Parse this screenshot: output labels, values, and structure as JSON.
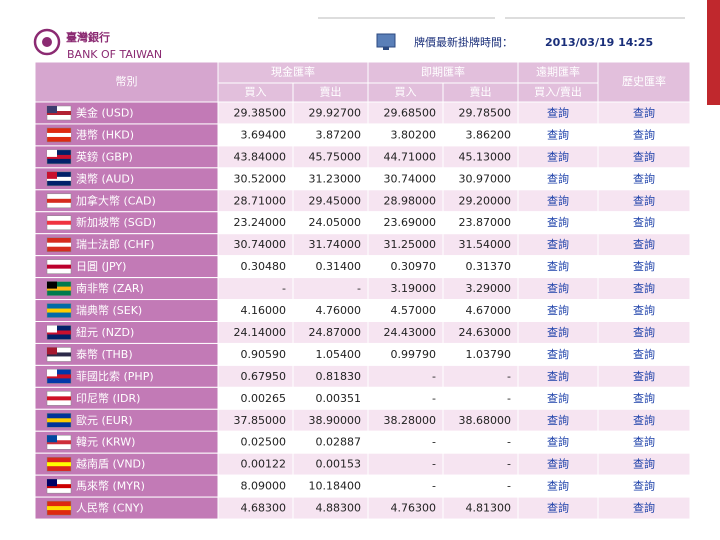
{
  "header": {
    "logo_name": "臺灣銀行",
    "logo_subtitle": "BANK OF TAIWAN",
    "update_label": "牌價最新掛牌時間：",
    "update_time": "2013/03/19 14:25"
  },
  "table": {
    "columns": {
      "currency": "幣別",
      "cash": "現金匯率",
      "spot": "即期匯率",
      "forward": "遠期匯率",
      "history": "歷史匯率",
      "sub": [
        "買入",
        "賣出",
        "買入",
        "賣出",
        "買入/賣出"
      ]
    },
    "rows": [
      [
        "美金 (USD)",
        "29.38500",
        "29.92700",
        "29.68500",
        "29.78500",
        "查詢",
        "查詢"
      ],
      [
        "港幣 (HKD)",
        "3.69400",
        "3.87200",
        "3.80200",
        "3.86200",
        "查詢",
        "查詢"
      ],
      [
        "英鎊 (GBP)",
        "43.84000",
        "45.75000",
        "44.71000",
        "45.13000",
        "查詢",
        "查詢"
      ],
      [
        "澳幣 (AUD)",
        "30.52000",
        "31.23000",
        "30.74000",
        "30.97000",
        "查詢",
        "查詢"
      ],
      [
        "加拿大幣 (CAD)",
        "28.71000",
        "29.45000",
        "28.98000",
        "29.20000",
        "查詢",
        "查詢"
      ],
      [
        "新加坡幣 (SGD)",
        "23.24000",
        "24.05000",
        "23.69000",
        "23.87000",
        "查詢",
        "查詢"
      ],
      [
        "瑞士法郎 (CHF)",
        "30.74000",
        "31.74000",
        "31.25000",
        "31.54000",
        "查詢",
        "查詢"
      ],
      [
        "日圓 (JPY)",
        "0.30480",
        "0.31400",
        "0.30970",
        "0.31370",
        "查詢",
        "查詢"
      ],
      [
        "南非幣 (ZAR)",
        "-",
        "-",
        "3.19000",
        "3.29000",
        "查詢",
        "查詢"
      ],
      [
        "瑞典幣 (SEK)",
        "4.16000",
        "4.76000",
        "4.57000",
        "4.67000",
        "查詢",
        "查詢"
      ],
      [
        "紐元 (NZD)",
        "24.14000",
        "24.87000",
        "24.43000",
        "24.63000",
        "查詢",
        "查詢"
      ],
      [
        "泰幣 (THB)",
        "0.90590",
        "1.05400",
        "0.99790",
        "1.03790",
        "查詢",
        "查詢"
      ],
      [
        "菲國比索 (PHP)",
        "0.67950",
        "0.81830",
        "-",
        "-",
        "查詢",
        "查詢"
      ],
      [
        "印尼幣 (IDR)",
        "0.00265",
        "0.00351",
        "-",
        "-",
        "查詢",
        "查詢"
      ],
      [
        "歐元 (EUR)",
        "37.85000",
        "38.90000",
        "38.28000",
        "38.68000",
        "查詢",
        "查詢"
      ],
      [
        "韓元 (KRW)",
        "0.02500",
        "0.02887",
        "-",
        "-",
        "查詢",
        "查詢"
      ],
      [
        "越南盾 (VND)",
        "0.00122",
        "0.00153",
        "-",
        "-",
        "查詢",
        "查詢"
      ],
      [
        "馬來幣 (MYR)",
        "8.09000",
        "10.18400",
        "-",
        "-",
        "查詢",
        "查詢"
      ],
      [
        "人民幣 (CNY)",
        "4.68300",
        "4.88300",
        "4.76300",
        "4.81300",
        "查詢",
        "查詢"
      ]
    ]
  }
}
